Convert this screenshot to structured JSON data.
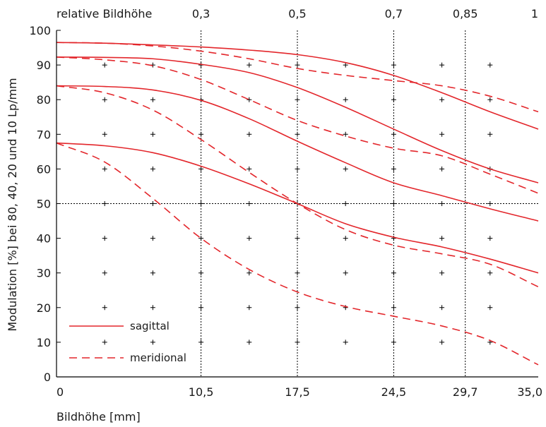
{
  "chart_data": {
    "type": "line",
    "xlabel": "Bildhöhe [mm]",
    "ylabel": "Modulation [%] bei 80, 40, 20 und 10 Lp/mm",
    "x2label": "relative Bildhöhe",
    "xlim": [
      0,
      35
    ],
    "ylim": [
      0,
      100
    ],
    "x_ticks": [
      {
        "value": 0,
        "label": "0"
      },
      {
        "value": 10.5,
        "label": "10,5"
      },
      {
        "value": 17.5,
        "label": "17,5"
      },
      {
        "value": 24.5,
        "label": "24,5"
      },
      {
        "value": 29.7,
        "label": "29,7"
      },
      {
        "value": 35,
        "label": "35,0"
      }
    ],
    "x2_ticks": [
      {
        "value": 10.5,
        "label": "0,3"
      },
      {
        "value": 17.5,
        "label": "0,5"
      },
      {
        "value": 24.5,
        "label": "0,7"
      },
      {
        "value": 29.7,
        "label": "0,85"
      },
      {
        "value": 35,
        "label": "1"
      }
    ],
    "y_ticks": [
      0,
      10,
      20,
      30,
      40,
      50,
      60,
      70,
      80,
      90,
      100
    ],
    "vertical_guides": [
      10.5,
      17.5,
      24.5,
      29.7
    ],
    "horizontal_guides": [
      50
    ],
    "grid_marks_x": [
      3.5,
      7,
      10.5,
      14,
      17.5,
      21,
      24.5,
      28,
      31.5
    ],
    "grid_marks_y": [
      10,
      20,
      30,
      40,
      50,
      60,
      70,
      80,
      90
    ],
    "line_color": "#e3262b",
    "legend": {
      "position": "bottom-left",
      "entries": [
        {
          "label": "sagittal",
          "style": "solid"
        },
        {
          "label": "meridional",
          "style": "dashed"
        }
      ]
    },
    "series": [
      {
        "style": "solid",
        "x": [
          0,
          3.5,
          7,
          10.5,
          14,
          17.5,
          21,
          24.5,
          28,
          31.5,
          35
        ],
        "values": [
          96.5,
          96.3,
          95.8,
          95.2,
          94.3,
          93,
          90.7,
          87,
          82,
          76.5,
          71.5
        ]
      },
      {
        "style": "dashed",
        "x": [
          0,
          3.5,
          7,
          10.5,
          14,
          17.5,
          21,
          24.5,
          28,
          31.5,
          35
        ],
        "values": [
          96.5,
          96.3,
          95.5,
          94,
          91.8,
          89,
          87,
          85.5,
          84,
          81,
          76.5
        ]
      },
      {
        "style": "solid",
        "x": [
          0,
          3.5,
          7,
          10.5,
          14,
          17.5,
          21,
          24.5,
          28,
          31.5,
          35
        ],
        "values": [
          92.3,
          92.2,
          91.8,
          90.2,
          87.8,
          83.5,
          77.8,
          71.5,
          65.3,
          60,
          56
        ]
      },
      {
        "style": "dashed",
        "x": [
          0,
          3.5,
          7,
          10.5,
          14,
          17.5,
          21,
          24.5,
          28,
          31.5,
          35
        ],
        "values": [
          92.3,
          91.5,
          89.8,
          85.8,
          80,
          74,
          69.5,
          66,
          63.8,
          58.5,
          53
        ]
      },
      {
        "style": "solid",
        "x": [
          0,
          3.5,
          7,
          10.5,
          14,
          17.5,
          21,
          24.5,
          28,
          31.5,
          35
        ],
        "values": [
          84,
          83.8,
          82.8,
          79.8,
          74.5,
          68,
          61.8,
          56,
          52.3,
          48.5,
          45
        ]
      },
      {
        "style": "dashed",
        "x": [
          0,
          3.5,
          7,
          10.5,
          14,
          17.5,
          21,
          24.5,
          28,
          31.5,
          35
        ],
        "values": [
          84,
          82,
          77,
          68.5,
          59,
          50,
          42.5,
          38,
          35.5,
          32.5,
          26
        ]
      },
      {
        "style": "solid",
        "x": [
          0,
          3.5,
          7,
          10.5,
          14,
          17.5,
          21,
          24.5,
          28,
          31.5,
          35
        ],
        "values": [
          67.5,
          66.7,
          64.7,
          60.8,
          55.7,
          50,
          44.2,
          40.3,
          37.5,
          34,
          30
        ]
      },
      {
        "style": "dashed",
        "x": [
          0,
          3.5,
          7,
          10.5,
          14,
          17.5,
          21,
          24.5,
          28,
          31.5,
          35
        ],
        "values": [
          67.5,
          62,
          51.5,
          40,
          31,
          24.5,
          20.3,
          17.5,
          14.7,
          10.5,
          3.5
        ]
      }
    ]
  }
}
